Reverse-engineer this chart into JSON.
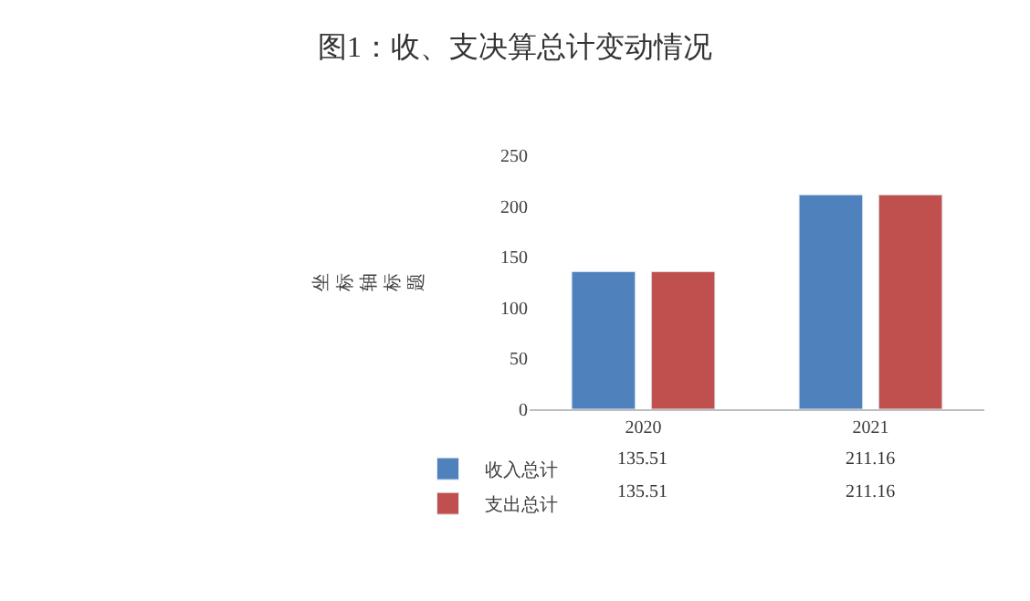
{
  "chart_data": {
    "type": "bar",
    "title": "图1：收、支决算总计变动情况",
    "ylabel": "坐标轴标题",
    "categories": [
      "2020",
      "2021"
    ],
    "series": [
      {
        "name": "收入总计",
        "color": "#4f81bd",
        "values": [
          135.51,
          211.16
        ]
      },
      {
        "name": "支出总计",
        "color": "#c0504d",
        "values": [
          135.51,
          211.16
        ]
      }
    ],
    "ylim": [
      0,
      250
    ],
    "yticks": [
      0,
      50,
      100,
      150,
      200,
      250
    ],
    "grid": false,
    "legend": "bottom left",
    "data_labels": true
  }
}
